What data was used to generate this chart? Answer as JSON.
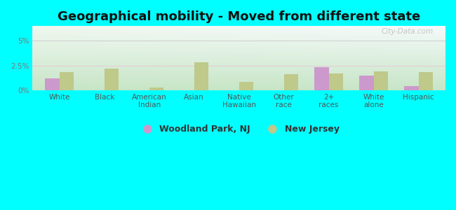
{
  "title": "Geographical mobility - Moved from different state",
  "categories": [
    "White",
    "Black",
    "American\nIndian",
    "Asian",
    "Native\nHawaiian",
    "Other\nrace",
    "2+\nraces",
    "White\nalone",
    "Hispanic"
  ],
  "woodland_park": [
    1.2,
    0.0,
    0.0,
    0.0,
    0.0,
    0.0,
    2.3,
    1.5,
    0.4
  ],
  "new_jersey": [
    1.8,
    2.2,
    0.3,
    2.8,
    0.8,
    1.6,
    1.7,
    1.9,
    1.8
  ],
  "woodland_color": "#cc99cc",
  "nj_color": "#bec98a",
  "bg_color_outer": "#00ffff",
  "ylim": [
    0,
    6.5
  ],
  "yticks": [
    0,
    2.5,
    5.0
  ],
  "ytick_labels": [
    "0%",
    "2.5%",
    "5%"
  ],
  "legend_label_1": "Woodland Park, NJ",
  "legend_label_2": "New Jersey",
  "watermark": "City-Data.com",
  "title_fontsize": 13,
  "tick_fontsize": 7.5,
  "legend_fontsize": 9,
  "grad_top_left": "#c8e8c0",
  "grad_top_right": "#e8f0f8",
  "grad_bottom_left": "#c8e8c8",
  "grad_bottom_right": "#d8eef0"
}
